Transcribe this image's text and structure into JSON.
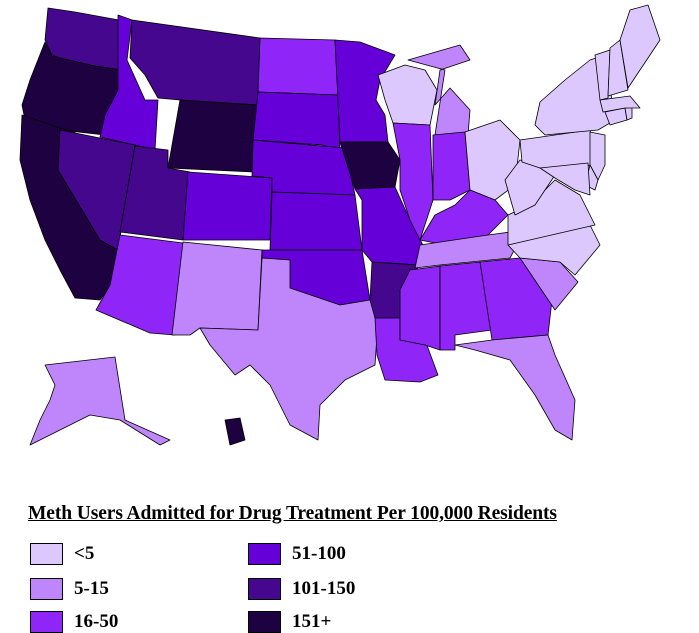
{
  "title": "Meth Users Admitted for Drug Treatment Per 100,000 Residents",
  "legend": [
    {
      "label": "<5",
      "color": "#dcc8fc"
    },
    {
      "label": "5-15",
      "color": "#bf85fa"
    },
    {
      "label": "16-50",
      "color": "#8f26f7"
    },
    {
      "label": "51-100",
      "color": "#6600d8"
    },
    {
      "label": "101-150",
      "color": "#45078e"
    },
    {
      "label": "151+",
      "color": "#1e0140"
    }
  ],
  "chart_data": {
    "type": "choropleth",
    "title": "Meth Users Admitted for Drug Treatment Per 100,000 Residents",
    "region": "United States",
    "bins": [
      "<5",
      "5-15",
      "16-50",
      "51-100",
      "101-150",
      "151+"
    ],
    "values": {
      "WA": "101-150",
      "OR": "151+",
      "CA": "151+",
      "NV": "101-150",
      "ID": "51-100",
      "MT": "101-150",
      "WY": "151+",
      "UT": "101-150",
      "AZ": "16-50",
      "CO": "51-100",
      "NM": "5-15",
      "ND": "16-50",
      "SD": "51-100",
      "NE": "51-100",
      "KS": "51-100",
      "OK": "51-100",
      "TX": "5-15",
      "MN": "51-100",
      "IA": "151+",
      "MO": "51-100",
      "AR": "101-150",
      "LA": "16-50",
      "WI": "<5",
      "IL": "16-50",
      "MI": "5-15",
      "IN": "16-50",
      "KY": "16-50",
      "TN": "5-15",
      "MS": "16-50",
      "AL": "16-50",
      "GA": "16-50",
      "FL": "5-15",
      "SC": "5-15",
      "NC": "<5",
      "VA": "<5",
      "WV": "<5",
      "OH": "<5",
      "PA": "<5",
      "NY": "<5",
      "NJ": "<5",
      "DE": "<5",
      "MD": "<5",
      "CT": "<5",
      "RI": "<5",
      "MA": "<5",
      "VT": "<5",
      "NH": "<5",
      "ME": "<5",
      "AK": "5-15",
      "HI": "151+"
    },
    "legend_position": "bottom-left"
  }
}
